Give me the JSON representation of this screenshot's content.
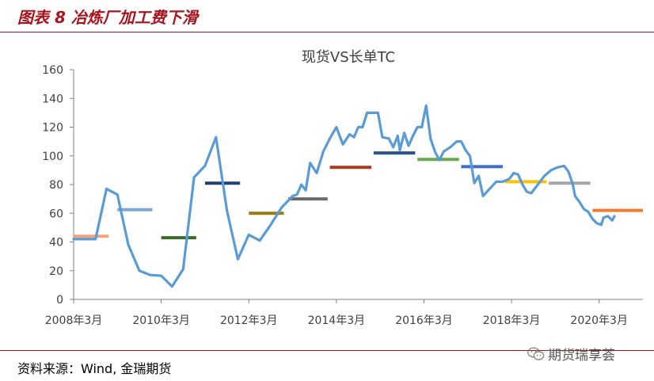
{
  "figure": {
    "title": "图表 8 冶炼厂加工费下滑",
    "source": "资料来源：Wind, 金瑞期货",
    "watermark": "期货瑞享荟",
    "watermark_icon": "wechat-icon"
  },
  "chart_data": {
    "type": "line",
    "title": "现货VS长单TC",
    "ylim": [
      0,
      160
    ],
    "yticks": [
      "0",
      "20",
      "40",
      "60",
      "80",
      "100",
      "120",
      "140",
      "160"
    ],
    "xlim": [
      2008.0,
      2021.0
    ],
    "xticks": [
      {
        "label": "2008年3月",
        "x": 2008.0
      },
      {
        "label": "2010年3月",
        "x": 2010.0
      },
      {
        "label": "2012年3月",
        "x": 2012.0
      },
      {
        "label": "2014年3月",
        "x": 2014.0
      },
      {
        "label": "2016年3月",
        "x": 2016.0
      },
      {
        "label": "2018年3月",
        "x": 2018.0
      },
      {
        "label": "2020年3月",
        "x": 2020.0
      }
    ],
    "spot_series": {
      "color": "#5b9bd5",
      "points": [
        [
          2008.0,
          42
        ],
        [
          2008.5,
          42
        ],
        [
          2008.75,
          77
        ],
        [
          2009.0,
          73
        ],
        [
          2009.25,
          38
        ],
        [
          2009.5,
          20
        ],
        [
          2009.75,
          17
        ],
        [
          2010.0,
          16.5
        ],
        [
          2010.25,
          9
        ],
        [
          2010.5,
          21
        ],
        [
          2010.75,
          85
        ],
        [
          2011.0,
          93
        ],
        [
          2011.25,
          113
        ],
        [
          2011.5,
          62
        ],
        [
          2011.75,
          28
        ],
        [
          2012.0,
          45
        ],
        [
          2012.25,
          41
        ],
        [
          2012.5,
          52
        ],
        [
          2012.75,
          64
        ],
        [
          2013.0,
          72
        ],
        [
          2013.1,
          73
        ],
        [
          2013.2,
          80
        ],
        [
          2013.3,
          76
        ],
        [
          2013.4,
          95
        ],
        [
          2013.55,
          88
        ],
        [
          2013.7,
          103
        ],
        [
          2013.85,
          112
        ],
        [
          2014.0,
          120
        ],
        [
          2014.15,
          108
        ],
        [
          2014.3,
          115
        ],
        [
          2014.4,
          113
        ],
        [
          2014.5,
          120
        ],
        [
          2014.6,
          120
        ],
        [
          2014.7,
          130
        ],
        [
          2014.8,
          130
        ],
        [
          2014.95,
          130
        ],
        [
          2015.05,
          113
        ],
        [
          2015.2,
          112
        ],
        [
          2015.3,
          106
        ],
        [
          2015.4,
          114
        ],
        [
          2015.45,
          104
        ],
        [
          2015.55,
          116
        ],
        [
          2015.65,
          107
        ],
        [
          2015.75,
          114
        ],
        [
          2015.85,
          120
        ],
        [
          2015.95,
          120
        ],
        [
          2016.05,
          135
        ],
        [
          2016.15,
          112
        ],
        [
          2016.25,
          103
        ],
        [
          2016.35,
          97
        ],
        [
          2016.45,
          103
        ],
        [
          2016.6,
          106
        ],
        [
          2016.75,
          110
        ],
        [
          2016.85,
          110
        ],
        [
          2016.95,
          104
        ],
        [
          2017.05,
          100
        ],
        [
          2017.15,
          81
        ],
        [
          2017.25,
          86
        ],
        [
          2017.35,
          72
        ],
        [
          2017.5,
          77
        ],
        [
          2017.65,
          82
        ],
        [
          2017.8,
          82
        ],
        [
          2017.95,
          84
        ],
        [
          2018.05,
          88
        ],
        [
          2018.15,
          87
        ],
        [
          2018.25,
          80
        ],
        [
          2018.35,
          75
        ],
        [
          2018.45,
          74
        ],
        [
          2018.6,
          80
        ],
        [
          2018.75,
          86
        ],
        [
          2018.9,
          90
        ],
        [
          2019.05,
          92
        ],
        [
          2019.2,
          93
        ],
        [
          2019.3,
          89
        ],
        [
          2019.4,
          80
        ],
        [
          2019.45,
          72
        ],
        [
          2019.55,
          68
        ],
        [
          2019.65,
          63
        ],
        [
          2019.75,
          61
        ],
        [
          2019.85,
          56
        ],
        [
          2019.95,
          53
        ],
        [
          2020.05,
          52
        ],
        [
          2020.1,
          57
        ],
        [
          2020.2,
          58
        ],
        [
          2020.3,
          55
        ],
        [
          2020.35,
          58
        ]
      ]
    },
    "contract_segments": [
      {
        "x0": 2008.0,
        "x1": 2008.8,
        "y": 44,
        "color": "#f4a27a"
      },
      {
        "x0": 2009.0,
        "x1": 2009.8,
        "y": 62.5,
        "color": "#7aa7dc"
      },
      {
        "x0": 2010.0,
        "x1": 2010.8,
        "y": 43,
        "color": "#3a6b2c"
      },
      {
        "x0": 2011.0,
        "x1": 2011.8,
        "y": 81,
        "color": "#1f3f7a"
      },
      {
        "x0": 2012.0,
        "x1": 2012.8,
        "y": 60,
        "color": "#9b7c10"
      },
      {
        "x0": 2012.9,
        "x1": 2013.8,
        "y": 70,
        "color": "#6b6b6b"
      },
      {
        "x0": 2013.85,
        "x1": 2014.8,
        "y": 92,
        "color": "#a83e1c"
      },
      {
        "x0": 2014.85,
        "x1": 2015.8,
        "y": 102,
        "color": "#27548a"
      },
      {
        "x0": 2015.85,
        "x1": 2016.8,
        "y": 97.5,
        "color": "#6aa84f"
      },
      {
        "x0": 2016.85,
        "x1": 2017.8,
        "y": 92.5,
        "color": "#3c6fc4"
      },
      {
        "x0": 2017.85,
        "x1": 2018.8,
        "y": 82,
        "color": "#ffc000"
      },
      {
        "x0": 2018.85,
        "x1": 2019.8,
        "y": 81,
        "color": "#a5a5a5"
      },
      {
        "x0": 2019.85,
        "x1": 2021.0,
        "y": 62,
        "color": "#ed7d31"
      }
    ]
  }
}
